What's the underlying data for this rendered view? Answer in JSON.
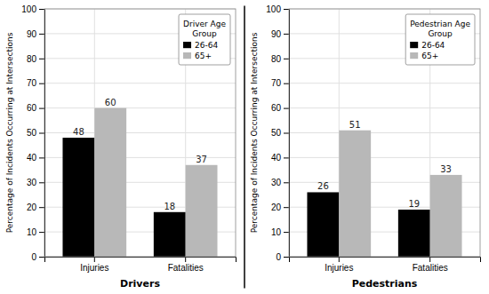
{
  "chart_data": [
    {
      "type": "bar",
      "xlabel": "Drivers",
      "ylabel": "Percentage of Incidents Occurring at Intersections",
      "legend_title": "Driver Age\nGroup",
      "categories": [
        "Injuries",
        "Fatalities"
      ],
      "series": [
        {
          "name": "26-64",
          "color": "#000000",
          "values": [
            48,
            18
          ]
        },
        {
          "name": "65+",
          "color": "#b8b8b8",
          "values": [
            60,
            37
          ]
        }
      ],
      "ylim": [
        0,
        100
      ],
      "yticks": [
        0,
        10,
        20,
        30,
        40,
        50,
        60,
        70,
        80,
        90,
        100
      ],
      "grid": true,
      "legend": "upper right",
      "data_labels": true
    },
    {
      "type": "bar",
      "xlabel": "Pedestrians",
      "ylabel": "Percentage of Incidents Occurring at Intersections",
      "legend_title": "Pedestrian Age\nGroup",
      "categories": [
        "Injuries",
        "Fatalities"
      ],
      "series": [
        {
          "name": "26-64",
          "color": "#000000",
          "values": [
            26,
            19
          ]
        },
        {
          "name": "65+",
          "color": "#b8b8b8",
          "values": [
            51,
            33
          ]
        }
      ],
      "ylim": [
        0,
        100
      ],
      "yticks": [
        0,
        10,
        20,
        30,
        40,
        50,
        60,
        70,
        80,
        90,
        100
      ],
      "grid": true,
      "legend": "upper right",
      "data_labels": true
    }
  ],
  "divider_color": "#000000"
}
